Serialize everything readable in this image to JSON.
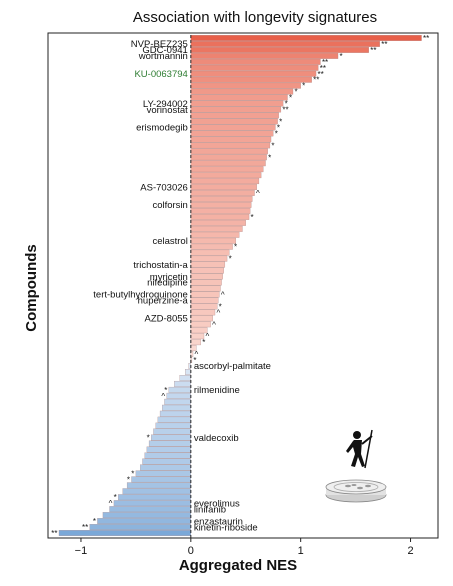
{
  "chart_data": {
    "type": "bar",
    "orientation": "horizontal",
    "title": "Association with longevity signatures",
    "xlabel": "Aggregated NES",
    "ylabel": "Compounds",
    "xlim": [
      -1.3,
      2.25
    ],
    "xticks": [
      -1,
      0,
      1,
      2
    ],
    "grid": false,
    "colors": {
      "positive": "#e8604a",
      "negative": "#7aa8d8",
      "highlight_label": "#2e7d32"
    },
    "bars": [
      {
        "label": "",
        "value": 2.1,
        "sig": "**"
      },
      {
        "label": "NVP-BEZ235",
        "value": 1.72,
        "sig": "**"
      },
      {
        "label": "GDC-0941",
        "value": 1.62,
        "sig": "**"
      },
      {
        "label": "wortmannin",
        "value": 1.34,
        "sig": "*"
      },
      {
        "label": "",
        "value": 1.18,
        "sig": "**"
      },
      {
        "label": "",
        "value": 1.16,
        "sig": "**"
      },
      {
        "label": "KU-0063794",
        "value": 1.14,
        "sig": "**",
        "highlight": true
      },
      {
        "label": "",
        "value": 1.1,
        "sig": "**"
      },
      {
        "label": "",
        "value": 1.0,
        "sig": "*"
      },
      {
        "label": "",
        "value": 0.93,
        "sig": "*"
      },
      {
        "label": "",
        "value": 0.88,
        "sig": "*"
      },
      {
        "label": "LY-294002",
        "value": 0.84,
        "sig": "*"
      },
      {
        "label": "vorinostat",
        "value": 0.82,
        "sig": "**"
      },
      {
        "label": "",
        "value": 0.8,
        "sig": ""
      },
      {
        "label": "",
        "value": 0.79,
        "sig": "*"
      },
      {
        "label": "erismodegib",
        "value": 0.77,
        "sig": "*"
      },
      {
        "label": "",
        "value": 0.75,
        "sig": "*"
      },
      {
        "label": "",
        "value": 0.73,
        "sig": ""
      },
      {
        "label": "",
        "value": 0.72,
        "sig": "*"
      },
      {
        "label": "",
        "value": 0.7,
        "sig": ""
      },
      {
        "label": "",
        "value": 0.69,
        "sig": "*"
      },
      {
        "label": "",
        "value": 0.68,
        "sig": ""
      },
      {
        "label": "",
        "value": 0.66,
        "sig": ""
      },
      {
        "label": "",
        "value": 0.64,
        "sig": ""
      },
      {
        "label": "",
        "value": 0.62,
        "sig": ""
      },
      {
        "label": "AS-703026",
        "value": 0.6,
        "sig": ""
      },
      {
        "label": "",
        "value": 0.58,
        "sig": "^"
      },
      {
        "label": "",
        "value": 0.56,
        "sig": ""
      },
      {
        "label": "colforsin",
        "value": 0.55,
        "sig": ""
      },
      {
        "label": "",
        "value": 0.54,
        "sig": ""
      },
      {
        "label": "",
        "value": 0.53,
        "sig": "*"
      },
      {
        "label": "",
        "value": 0.5,
        "sig": ""
      },
      {
        "label": "",
        "value": 0.47,
        "sig": ""
      },
      {
        "label": "",
        "value": 0.44,
        "sig": ""
      },
      {
        "label": "celastrol",
        "value": 0.41,
        "sig": ""
      },
      {
        "label": "",
        "value": 0.38,
        "sig": "*"
      },
      {
        "label": "",
        "value": 0.35,
        "sig": ""
      },
      {
        "label": "",
        "value": 0.33,
        "sig": "*"
      },
      {
        "label": "trichostatin-a",
        "value": 0.31,
        "sig": ""
      },
      {
        "label": "",
        "value": 0.3,
        "sig": ""
      },
      {
        "label": "myricetin",
        "value": 0.29,
        "sig": ""
      },
      {
        "label": "nifedipine",
        "value": 0.28,
        "sig": ""
      },
      {
        "label": "",
        "value": 0.27,
        "sig": ""
      },
      {
        "label": "tert-butylhydroquinone",
        "value": 0.26,
        "sig": "^"
      },
      {
        "label": "huperzine-a",
        "value": 0.25,
        "sig": ""
      },
      {
        "label": "",
        "value": 0.24,
        "sig": "*"
      },
      {
        "label": "",
        "value": 0.22,
        "sig": "^"
      },
      {
        "label": "AZD-8055",
        "value": 0.2,
        "sig": ""
      },
      {
        "label": "",
        "value": 0.18,
        "sig": "^"
      },
      {
        "label": "",
        "value": 0.15,
        "sig": ""
      },
      {
        "label": "",
        "value": 0.12,
        "sig": "^"
      },
      {
        "label": "",
        "value": 0.09,
        "sig": "*"
      },
      {
        "label": "",
        "value": 0.05,
        "sig": ""
      },
      {
        "label": "",
        "value": 0.02,
        "sig": "^"
      },
      {
        "label": "",
        "value": 0.01,
        "sig": "*"
      },
      {
        "label": "ascorbyl-palmitate",
        "value": -0.02,
        "sig": ""
      },
      {
        "label": "",
        "value": -0.05,
        "sig": ""
      },
      {
        "label": "",
        "value": -0.1,
        "sig": ""
      },
      {
        "label": "",
        "value": -0.15,
        "sig": ""
      },
      {
        "label": "rilmenidine",
        "value": -0.2,
        "sig": "*"
      },
      {
        "label": "",
        "value": -0.22,
        "sig": "^"
      },
      {
        "label": "",
        "value": -0.24,
        "sig": ""
      },
      {
        "label": "",
        "value": -0.26,
        "sig": ""
      },
      {
        "label": "",
        "value": -0.28,
        "sig": ""
      },
      {
        "label": "",
        "value": -0.3,
        "sig": ""
      },
      {
        "label": "",
        "value": -0.32,
        "sig": ""
      },
      {
        "label": "",
        "value": -0.34,
        "sig": ""
      },
      {
        "label": "valdecoxib",
        "value": -0.36,
        "sig": "*"
      },
      {
        "label": "",
        "value": -0.38,
        "sig": ""
      },
      {
        "label": "",
        "value": -0.4,
        "sig": ""
      },
      {
        "label": "",
        "value": -0.42,
        "sig": ""
      },
      {
        "label": "",
        "value": -0.44,
        "sig": ""
      },
      {
        "label": "",
        "value": -0.46,
        "sig": ""
      },
      {
        "label": "",
        "value": -0.5,
        "sig": "*"
      },
      {
        "label": "",
        "value": -0.54,
        "sig": "*"
      },
      {
        "label": "",
        "value": -0.58,
        "sig": ""
      },
      {
        "label": "",
        "value": -0.62,
        "sig": ""
      },
      {
        "label": "",
        "value": -0.66,
        "sig": "*"
      },
      {
        "label": "everolimus",
        "value": -0.7,
        "sig": "^"
      },
      {
        "label": "linifanib",
        "value": -0.74,
        "sig": ""
      },
      {
        "label": "",
        "value": -0.8,
        "sig": ""
      },
      {
        "label": "enzastaurin",
        "value": -0.85,
        "sig": "*"
      },
      {
        "label": "kinetin-riboside",
        "value": -0.92,
        "sig": "**"
      },
      {
        "label": "",
        "value": -1.2,
        "sig": "**"
      }
    ]
  }
}
